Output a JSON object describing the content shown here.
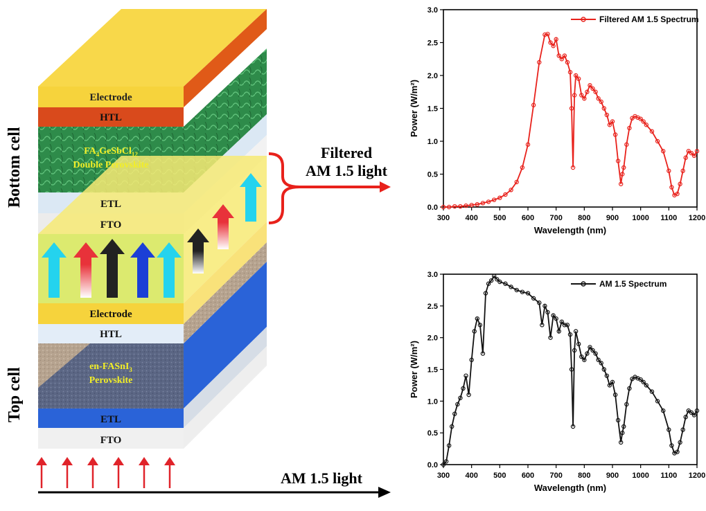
{
  "stack": {
    "bottom_cell_label": "Bottom cell",
    "top_cell_label": "Top cell",
    "layers_bottom": {
      "electrode": "Electrode",
      "htl": "HTL",
      "absorber_line1_prefix": "FA",
      "absorber_line1_sub1": "4",
      "absorber_line1_mid": "GeSbCl",
      "absorber_line1_sub2": "12",
      "absorber_line2": "Double Perovskite",
      "etl": "ETL",
      "fto": "FTO"
    },
    "layers_top": {
      "electrode": "Electrode",
      "htl": "HTL",
      "absorber_line1_prefix": "en-FASnI",
      "absorber_line1_sub": "3",
      "absorber_line2": "Perovskite",
      "etl": "ETL",
      "fto": "FTO"
    },
    "colors": {
      "electrode": "#f6d33c",
      "htl_bottom": "#d94a1c",
      "bottom_absorber": "#2f8a4a",
      "etl_light": "#dbe8f4",
      "fto": "#ececec",
      "top_absorber": "#5f6a8a",
      "top_etl": "#2a63d8",
      "sand": "#b9a896"
    }
  },
  "filtered_label": {
    "line1": "Filtered",
    "line2": "AM 1.5 light"
  },
  "am_light_label": "AM 1.5 light",
  "charts": [
    {
      "type": "line",
      "legend": "Filtered AM 1.5 Spectrum",
      "xlabel": "Wavelength (nm)",
      "ylabel": "Power (W/m²)",
      "xlim": [
        300,
        1200
      ],
      "ylim": [
        0,
        3.0
      ],
      "xticks": [
        "300",
        "400",
        "500",
        "600",
        "700",
        "800",
        "900",
        "1000",
        "1100",
        "1200"
      ],
      "yticks": [
        "0.0",
        "0.5",
        "1.0",
        "1.5",
        "2.0",
        "2.5",
        "3.0"
      ],
      "color": "#e8211b",
      "x": [
        300,
        320,
        340,
        360,
        380,
        400,
        420,
        440,
        460,
        480,
        500,
        520,
        540,
        560,
        580,
        600,
        620,
        640,
        660,
        670,
        680,
        690,
        700,
        710,
        720,
        730,
        740,
        750,
        755,
        760,
        765,
        770,
        780,
        790,
        800,
        810,
        820,
        830,
        840,
        850,
        860,
        870,
        880,
        890,
        900,
        910,
        920,
        930,
        935,
        940,
        950,
        960,
        970,
        980,
        990,
        1000,
        1010,
        1020,
        1040,
        1060,
        1080,
        1100,
        1110,
        1120,
        1130,
        1140,
        1150,
        1160,
        1170,
        1180,
        1190,
        1200
      ],
      "y": [
        0.0,
        0.0,
        0.01,
        0.01,
        0.02,
        0.03,
        0.04,
        0.06,
        0.08,
        0.11,
        0.14,
        0.19,
        0.26,
        0.38,
        0.6,
        0.95,
        1.55,
        2.2,
        2.62,
        2.63,
        2.5,
        2.45,
        2.55,
        2.3,
        2.25,
        2.3,
        2.2,
        2.05,
        1.5,
        0.6,
        1.7,
        2.0,
        1.95,
        1.7,
        1.65,
        1.75,
        1.85,
        1.8,
        1.75,
        1.65,
        1.6,
        1.5,
        1.4,
        1.25,
        1.3,
        1.1,
        0.7,
        0.35,
        0.5,
        0.6,
        0.95,
        1.2,
        1.35,
        1.38,
        1.36,
        1.34,
        1.3,
        1.25,
        1.15,
        1.0,
        0.85,
        0.55,
        0.3,
        0.18,
        0.2,
        0.35,
        0.55,
        0.75,
        0.85,
        0.82,
        0.78,
        0.85
      ]
    },
    {
      "type": "line",
      "legend": "AM 1.5 Spectrum",
      "xlabel": "Wavelength (nm)",
      "ylabel": "Power (W/m²)",
      "xlim": [
        300,
        1200
      ],
      "ylim": [
        0,
        3.0
      ],
      "xticks": [
        "300",
        "400",
        "500",
        "600",
        "700",
        "800",
        "900",
        "1000",
        "1100",
        "1200"
      ],
      "yticks": [
        "0.0",
        "0.5",
        "1.0",
        "1.5",
        "2.0",
        "2.5",
        "3.0"
      ],
      "color": "#111111",
      "x": [
        300,
        310,
        320,
        330,
        340,
        350,
        360,
        370,
        380,
        390,
        400,
        410,
        420,
        430,
        440,
        450,
        460,
        470,
        480,
        490,
        500,
        520,
        540,
        560,
        580,
        600,
        620,
        640,
        650,
        660,
        670,
        680,
        690,
        700,
        710,
        720,
        730,
        740,
        750,
        755,
        760,
        765,
        770,
        780,
        790,
        800,
        810,
        820,
        830,
        840,
        850,
        860,
        870,
        880,
        890,
        900,
        910,
        920,
        930,
        935,
        940,
        950,
        960,
        970,
        980,
        990,
        1000,
        1010,
        1020,
        1040,
        1060,
        1080,
        1100,
        1110,
        1120,
        1130,
        1140,
        1150,
        1160,
        1170,
        1180,
        1190,
        1200
      ],
      "y": [
        0.0,
        0.05,
        0.3,
        0.6,
        0.8,
        0.95,
        1.05,
        1.2,
        1.4,
        1.1,
        1.65,
        2.1,
        2.3,
        2.2,
        1.75,
        2.7,
        2.85,
        2.9,
        2.97,
        2.92,
        2.88,
        2.85,
        2.8,
        2.75,
        2.72,
        2.7,
        2.62,
        2.55,
        2.2,
        2.5,
        2.4,
        2.0,
        2.35,
        2.3,
        2.1,
        2.25,
        2.2,
        2.2,
        2.05,
        1.5,
        0.6,
        1.8,
        2.1,
        1.9,
        1.7,
        1.65,
        1.75,
        1.85,
        1.8,
        1.75,
        1.65,
        1.6,
        1.5,
        1.4,
        1.25,
        1.3,
        1.1,
        0.7,
        0.35,
        0.5,
        0.6,
        0.95,
        1.2,
        1.35,
        1.38,
        1.36,
        1.34,
        1.3,
        1.25,
        1.15,
        1.0,
        0.85,
        0.55,
        0.3,
        0.18,
        0.2,
        0.35,
        0.55,
        0.75,
        0.85,
        0.82,
        0.78,
        0.85
      ]
    }
  ]
}
